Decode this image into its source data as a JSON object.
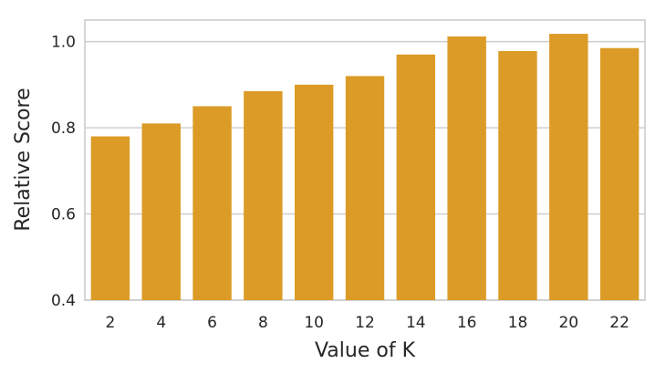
{
  "chart_data": {
    "type": "bar",
    "xlabel": "Value of K",
    "ylabel": "Relative Score",
    "categories": [
      "2",
      "4",
      "6",
      "8",
      "10",
      "12",
      "14",
      "16",
      "18",
      "20",
      "22"
    ],
    "values": [
      0.78,
      0.81,
      0.85,
      0.885,
      0.9,
      0.92,
      0.97,
      1.012,
      0.978,
      1.018,
      0.985
    ],
    "ylim": [
      0.4,
      1.05
    ],
    "yticks": [
      0.4,
      0.6,
      0.8,
      1.0
    ],
    "ytick_labels": [
      "0.4",
      "0.6",
      "0.8",
      "1.0"
    ],
    "bar_color": "#dc9b26",
    "grid": true
  }
}
